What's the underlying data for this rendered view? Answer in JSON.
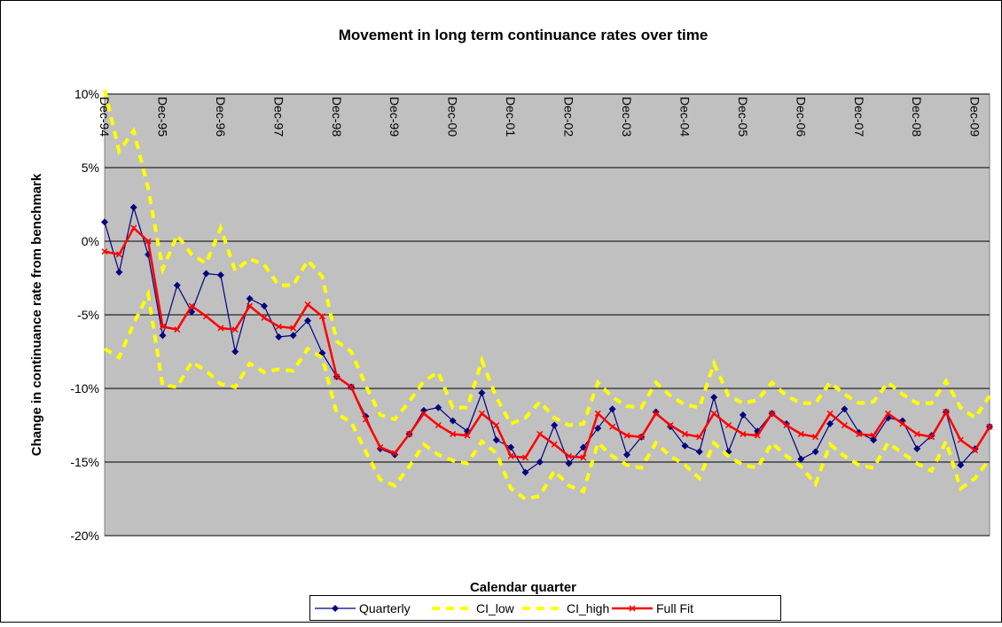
{
  "chart_data": {
    "type": "line",
    "title": "Movement in long term continuance rates over time",
    "x_label": "Calendar quarter",
    "y_label": "Change in continuance rate from benchmark",
    "categories": [
      "Dec-94",
      null,
      null,
      null,
      "Dec-95",
      null,
      null,
      null,
      "Dec-96",
      null,
      null,
      null,
      "Dec-97",
      null,
      null,
      null,
      "Dec-98",
      null,
      null,
      null,
      "Dec-99",
      null,
      null,
      null,
      "Dec-00",
      null,
      null,
      null,
      "Dec-01",
      null,
      null,
      null,
      "Dec-02",
      null,
      null,
      null,
      "Dec-03",
      null,
      null,
      null,
      "Dec-04",
      null,
      null,
      null,
      "Dec-05",
      null,
      null,
      null,
      "Dec-06",
      null,
      null,
      null,
      "Dec-07",
      null,
      null,
      null,
      "Dec-08",
      null,
      null,
      null,
      "Dec-09",
      null
    ],
    "ylim": [
      -20,
      10
    ],
    "yticks": [
      {
        "value": -20,
        "label": "-20%"
      },
      {
        "value": -15,
        "label": "-15%"
      },
      {
        "value": -10,
        "label": "-10%"
      },
      {
        "value": -5,
        "label": "-5%"
      },
      {
        "value": 0,
        "label": "0%"
      },
      {
        "value": 5,
        "label": "5%"
      },
      {
        "value": 10,
        "label": "10%"
      }
    ],
    "grid": true,
    "legend": "bottom",
    "series": [
      {
        "name": "Quarterly",
        "color": "#000080",
        "marker": "diamond",
        "dashed": false,
        "values": [
          1.3,
          -2.1,
          2.3,
          -0.9,
          -6.4,
          -3.0,
          -4.8,
          -2.2,
          -2.3,
          -7.5,
          -3.9,
          -4.4,
          -6.5,
          -6.4,
          -5.4,
          -7.6,
          -9.2,
          -9.9,
          -11.9,
          -14.1,
          -14.5,
          -13.1,
          -11.5,
          -11.3,
          -12.2,
          -12.9,
          -10.3,
          -13.5,
          -14.0,
          -15.7,
          -15.0,
          -12.5,
          -15.1,
          -14.0,
          -12.7,
          -11.4,
          -14.5,
          -13.3,
          -11.6,
          -12.6,
          -13.9,
          -14.3,
          -10.6,
          -14.3,
          -11.8,
          -12.9,
          -11.7,
          -12.4,
          -14.8,
          -14.3,
          -12.4,
          -11.4,
          -13.0,
          -13.5,
          -12.0,
          -12.2,
          -14.1,
          -13.2,
          -11.6,
          -15.2,
          -14.1,
          -12.6
        ]
      },
      {
        "name": "CI_low",
        "color": "#ffff00",
        "marker": "none",
        "dashed": true,
        "values": [
          -7.3,
          -7.9,
          -5.6,
          -3.6,
          -9.8,
          -9.9,
          -8.2,
          -8.8,
          -9.7,
          -9.9,
          -8.3,
          -8.9,
          -8.7,
          -8.8,
          -7.3,
          -7.9,
          -11.7,
          -12.3,
          -14.3,
          -16.2,
          -16.6,
          -15.3,
          -13.8,
          -14.5,
          -14.9,
          -15.1,
          -13.6,
          -14.4,
          -16.8,
          -17.5,
          -17.3,
          -15.6,
          -16.6,
          -17.0,
          -13.7,
          -14.6,
          -15.2,
          -15.4,
          -13.7,
          -14.6,
          -15.2,
          -16.1,
          -13.7,
          -14.6,
          -15.2,
          -15.4,
          -13.7,
          -14.6,
          -15.3,
          -16.5,
          -13.8,
          -14.6,
          -15.2,
          -15.4,
          -13.7,
          -14.4,
          -15.1,
          -15.6,
          -13.6,
          -16.8,
          -16.1,
          -14.8
        ]
      },
      {
        "name": "CI_high",
        "color": "#ffff00",
        "marker": "none",
        "dashed": true,
        "values": [
          10.3,
          6.1,
          7.5,
          3.6,
          -1.9,
          0.4,
          -0.9,
          -1.5,
          0.9,
          -2.0,
          -1.2,
          -1.6,
          -3.0,
          -3.0,
          -1.3,
          -2.4,
          -6.8,
          -7.5,
          -9.8,
          -11.8,
          -12.1,
          -10.9,
          -9.5,
          -8.9,
          -11.3,
          -11.3,
          -8.1,
          -10.6,
          -12.4,
          -12.0,
          -10.9,
          -12.0,
          -12.5,
          -12.4,
          -9.6,
          -10.6,
          -11.2,
          -11.3,
          -9.6,
          -10.5,
          -11.1,
          -11.3,
          -8.3,
          -10.5,
          -11.0,
          -10.8,
          -9.6,
          -10.5,
          -11.0,
          -11.0,
          -9.6,
          -10.4,
          -11.0,
          -10.9,
          -9.6,
          -10.4,
          -11.0,
          -11.0,
          -9.5,
          -11.3,
          -12.0,
          -10.5
        ]
      },
      {
        "name": "Full Fit",
        "color": "#ff0000",
        "marker": "x",
        "dashed": false,
        "values": [
          -0.7,
          -0.9,
          0.9,
          0.0,
          -5.8,
          -6.0,
          -4.4,
          -5.1,
          -5.9,
          -6.0,
          -4.4,
          -5.2,
          -5.8,
          -5.9,
          -4.3,
          -5.1,
          -9.2,
          -9.9,
          -12.1,
          -14.0,
          -14.4,
          -13.1,
          -11.7,
          -12.5,
          -13.1,
          -13.2,
          -11.7,
          -12.5,
          -14.6,
          -14.7,
          -13.1,
          -13.8,
          -14.6,
          -14.7,
          -11.7,
          -12.6,
          -13.2,
          -13.3,
          -11.7,
          -12.5,
          -13.1,
          -13.3,
          -11.7,
          -12.5,
          -13.1,
          -13.2,
          -11.7,
          -12.5,
          -13.1,
          -13.3,
          -11.7,
          -12.5,
          -13.1,
          -13.2,
          -11.7,
          -12.4,
          -13.1,
          -13.3,
          -11.6,
          -13.5,
          -14.2,
          -12.6
        ]
      }
    ]
  }
}
